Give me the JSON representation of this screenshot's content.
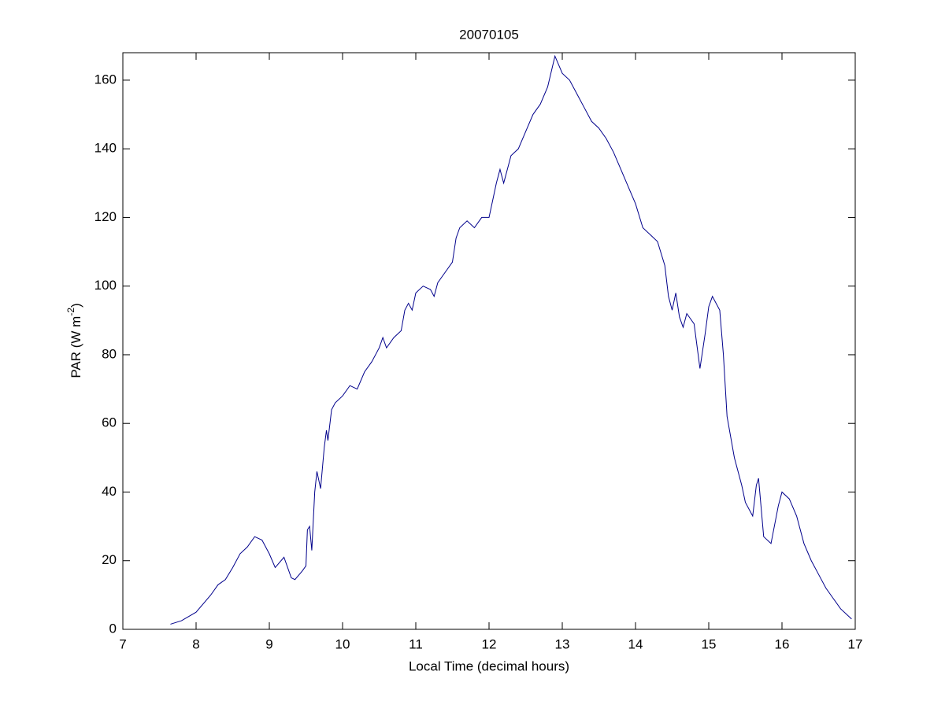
{
  "chart_data": {
    "type": "line",
    "title": "20070105",
    "xlabel": "Local Time (decimal hours)",
    "ylabel": {
      "text": "PAR (W m",
      "superscript": "-2",
      "suffix": ")"
    },
    "xlim": [
      7,
      17
    ],
    "xticks": [
      7,
      8,
      9,
      10,
      11,
      12,
      13,
      14,
      15,
      16,
      17
    ],
    "ylim": [
      0,
      168
    ],
    "yticks": [
      0,
      20,
      40,
      60,
      80,
      100,
      120,
      140,
      160
    ],
    "series": [
      {
        "color": "#00008b",
        "x": [
          7.65,
          7.8,
          8.0,
          8.1,
          8.2,
          8.3,
          8.4,
          8.5,
          8.6,
          8.7,
          8.8,
          8.9,
          9.0,
          9.08,
          9.2,
          9.3,
          9.35,
          9.45,
          9.5,
          9.52,
          9.55,
          9.58,
          9.62,
          9.65,
          9.7,
          9.75,
          9.78,
          9.8,
          9.85,
          9.9,
          10.0,
          10.1,
          10.2,
          10.3,
          10.4,
          10.5,
          10.55,
          10.6,
          10.7,
          10.8,
          10.85,
          10.9,
          10.95,
          11.0,
          11.1,
          11.2,
          11.25,
          11.3,
          11.4,
          11.5,
          11.55,
          11.6,
          11.7,
          11.8,
          11.9,
          12.0,
          12.05,
          12.1,
          12.15,
          12.2,
          12.3,
          12.4,
          12.5,
          12.6,
          12.7,
          12.8,
          12.9,
          13.0,
          13.1,
          13.2,
          13.3,
          13.4,
          13.5,
          13.6,
          13.7,
          13.8,
          13.9,
          14.0,
          14.1,
          14.2,
          14.3,
          14.4,
          14.45,
          14.5,
          14.55,
          14.6,
          14.65,
          14.7,
          14.8,
          14.88,
          14.95,
          15.0,
          15.05,
          15.15,
          15.2,
          15.25,
          15.35,
          15.45,
          15.5,
          15.6,
          15.65,
          15.68,
          15.75,
          15.85,
          15.95,
          16.0,
          16.1,
          16.2,
          16.3,
          16.4,
          16.5,
          16.6,
          16.7,
          16.8,
          16.9,
          16.95
        ],
        "values": [
          1.5,
          2.5,
          5,
          7.5,
          10,
          13,
          14.5,
          18,
          22,
          24,
          27,
          26,
          22,
          18,
          21,
          15,
          14.5,
          17,
          18.5,
          29,
          30,
          23,
          40,
          46,
          41,
          53,
          58,
          55,
          64,
          66,
          68,
          71,
          70,
          75,
          78,
          82,
          85,
          82,
          85,
          87,
          93,
          95,
          93,
          98,
          100,
          99,
          97,
          101,
          104,
          107,
          114,
          117,
          119,
          117,
          120,
          120,
          125,
          130,
          134,
          130,
          138,
          140,
          145,
          150,
          153,
          158,
          167,
          162,
          160,
          156,
          152,
          148,
          146,
          143,
          139,
          134,
          129,
          124,
          117,
          115,
          113,
          106,
          97,
          93,
          98,
          91,
          88,
          92,
          89,
          76,
          86,
          94,
          97,
          93,
          80,
          62,
          50,
          42,
          37,
          33,
          42,
          44,
          27,
          25,
          36,
          40,
          38,
          33,
          25,
          20,
          16,
          12,
          9,
          6,
          4,
          3
        ]
      }
    ]
  }
}
